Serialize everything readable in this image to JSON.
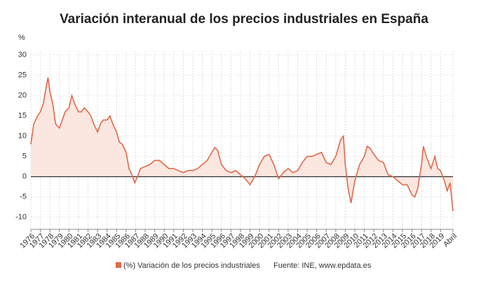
{
  "chart_data": {
    "type": "line",
    "title": "Variación interanual de los precios industriales en España",
    "y_label": "%",
    "source": "Fuente: INE, www.epdata.es",
    "color": "#e0694a",
    "area_color": "#fbe6e0",
    "grid": true,
    "xlim": [
      1976,
      2020.3
    ],
    "xticks": [
      1976,
      1977,
      1978,
      1979,
      1980,
      1981,
      1982,
      1983,
      1984,
      1985,
      1986,
      1987,
      1988,
      1989,
      1990,
      1991,
      1992,
      1993,
      1994,
      1995,
      1996,
      1997,
      1998,
      1999,
      2000,
      2001,
      2002,
      2003,
      2004,
      2005,
      2006,
      2007,
      2008,
      2009,
      2010,
      2011,
      2012,
      2013,
      2014,
      2015,
      2016,
      2017,
      2018,
      2019,
      {
        "value": 2020.3,
        "label": "Abril"
      }
    ],
    "ylim": [
      -13,
      31
    ],
    "yticks": [
      -10,
      -5,
      0,
      5,
      10,
      15,
      20,
      25,
      30
    ],
    "series": [
      {
        "name": "(%) Variación de los precios industriales",
        "color": "#e0694a",
        "x": [
          1976,
          1976.3,
          1976.7,
          1977,
          1977.3,
          1977.6,
          1977.8,
          1978,
          1978.3,
          1978.6,
          1979,
          1979.3,
          1979.6,
          1980,
          1980.3,
          1980.6,
          1981,
          1981.3,
          1981.6,
          1982,
          1982.3,
          1982.6,
          1983,
          1983.3,
          1983.6,
          1984,
          1984.3,
          1984.6,
          1985,
          1985.3,
          1985.6,
          1986,
          1986.3,
          1986.6,
          1986.9,
          1987.2,
          1987.5,
          1988,
          1988.5,
          1989,
          1989.5,
          1990,
          1990.5,
          1991,
          1991.5,
          1992,
          1992.5,
          1993,
          1993.5,
          1994,
          1994.5,
          1995,
          1995.3,
          1995.6,
          1996,
          1996.5,
          1997,
          1997.5,
          1998,
          1998.5,
          1999,
          1999.5,
          2000,
          2000.5,
          2001,
          2001.5,
          2002,
          2002.5,
          2003,
          2003.5,
          2004,
          2004.5,
          2005,
          2005.5,
          2006,
          2006.5,
          2007,
          2007.5,
          2008,
          2008.5,
          2008.8,
          2009,
          2009.3,
          2009.6,
          2010,
          2010.5,
          2011,
          2011.3,
          2011.6,
          2012,
          2012.5,
          2013,
          2013.5,
          2014,
          2014.5,
          2015,
          2015.5,
          2016,
          2016.3,
          2016.6,
          2017,
          2017.2,
          2017.5,
          2018,
          2018.4,
          2018.7,
          2019,
          2019.4,
          2019.7,
          2020,
          2020.3
        ],
        "values": [
          8,
          13,
          15,
          16,
          18,
          22,
          24.5,
          21,
          18,
          13,
          12,
          14,
          16,
          17,
          20,
          18,
          16,
          16,
          17,
          16,
          15,
          13,
          11,
          13,
          14,
          14,
          15,
          13,
          11,
          8.5,
          8,
          6,
          2,
          0.5,
          -1.5,
          0,
          2,
          2.5,
          3,
          4,
          4,
          3,
          2,
          2,
          1.5,
          1,
          1.5,
          1.5,
          2,
          3,
          4,
          6,
          7.2,
          6.5,
          3,
          1.5,
          1,
          1.5,
          0.5,
          -0.5,
          -2,
          0,
          3,
          5,
          5.5,
          3,
          -0.5,
          1,
          2,
          1,
          1.5,
          3.5,
          5,
          5,
          5.5,
          6,
          3.5,
          3,
          5,
          9,
          10,
          3,
          -3,
          -6.5,
          -1,
          3,
          5,
          7.5,
          7,
          5.5,
          4,
          3.5,
          0.5,
          0,
          -1,
          -2,
          -2,
          -4.5,
          -5,
          -3,
          3,
          7.5,
          5,
          2,
          5,
          2,
          1.5,
          -1,
          -3.5,
          -1.5,
          -8.5
        ]
      }
    ]
  }
}
